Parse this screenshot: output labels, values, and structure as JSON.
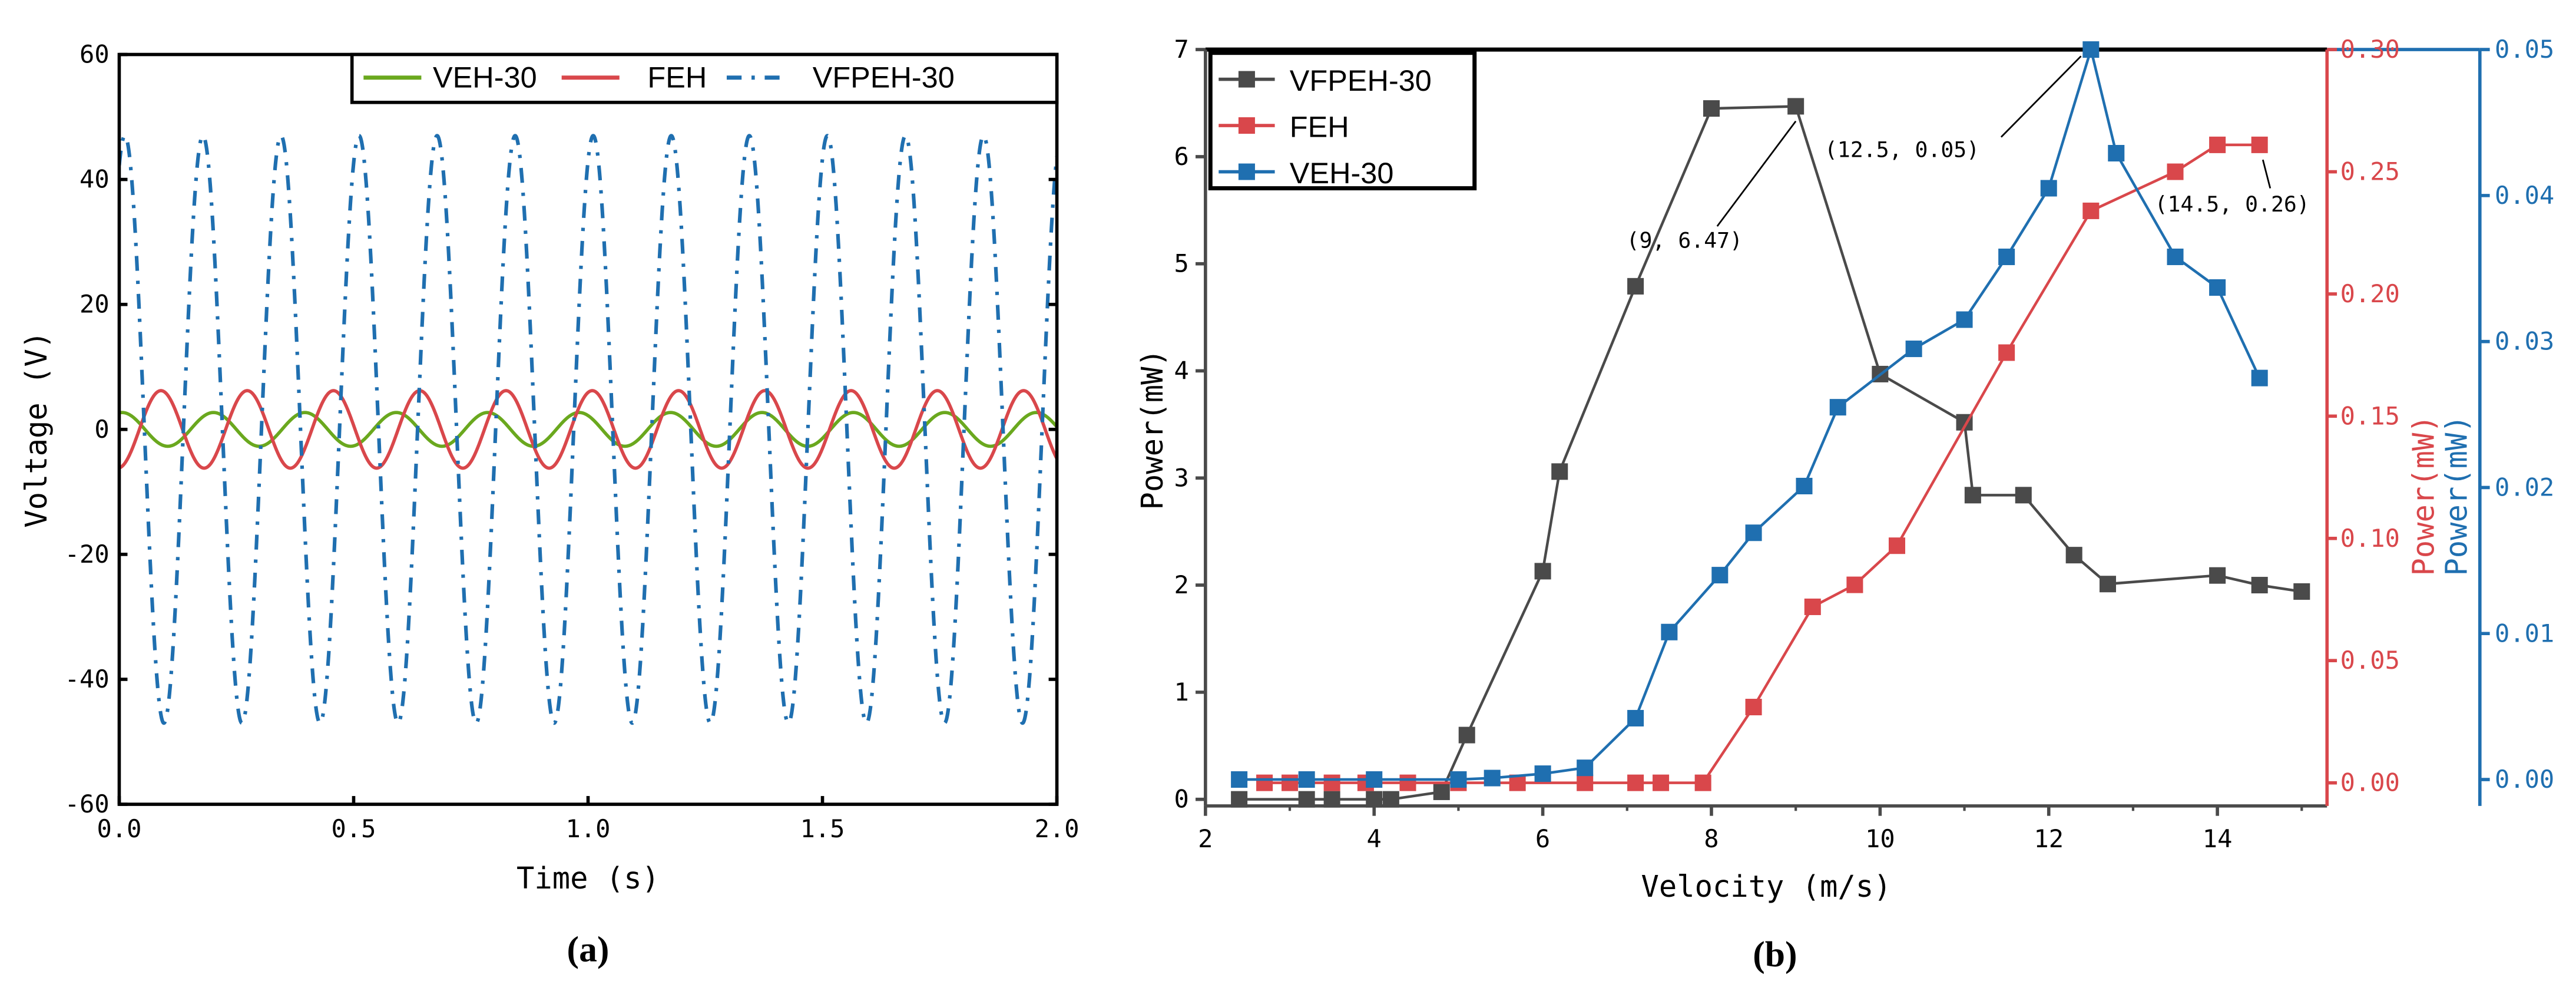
{
  "chart_data": [
    {
      "type": "line",
      "panel_label": "(a)",
      "xlabel": "Time (s)",
      "ylabel": "Voltage (V)",
      "xlim": [
        0,
        2
      ],
      "ylim": [
        -60,
        60
      ],
      "xticks": [
        "0.0",
        "0.5",
        "1.0",
        "1.5",
        "2.0"
      ],
      "yticks": [
        "-60",
        "-40",
        "-20",
        "0",
        "20",
        "40",
        "60"
      ],
      "legend_position": "top-right",
      "series": [
        {
          "name": "VEH-30",
          "color": "#6aa81e",
          "style": "solid",
          "amplitude": 2.7,
          "period": 0.195,
          "first_peak": 0.006
        },
        {
          "name": "FEH",
          "color": "#d9474b",
          "style": "solid",
          "amplitude": 6.2,
          "period": 0.184,
          "first_peak": 0.089
        },
        {
          "name": "VFPEH-30",
          "color": "#1f6fb0",
          "style": "dash-dot",
          "amplitude": 47,
          "period": 0.1665,
          "first_peak": 0.012
        }
      ]
    },
    {
      "type": "line",
      "panel_label": "(b)",
      "xlabel": "Velocity (m/s)",
      "ylabel": "Power(mW)",
      "ylabel_right_1": "Power(mW)",
      "ylabel_right_2": "Power(mW)",
      "xlim": [
        2,
        15.3
      ],
      "xticks": [
        "2",
        "4",
        "6",
        "8",
        "10",
        "12",
        "14"
      ],
      "ylim_left": [
        0,
        7
      ],
      "yticks_left": [
        "0",
        "1",
        "2",
        "3",
        "4",
        "5",
        "6",
        "7"
      ],
      "ylim_right_1": [
        0,
        0.3
      ],
      "yticks_right_1": [
        "0.00",
        "0.05",
        "0.10",
        "0.15",
        "0.20",
        "0.25",
        "0.30"
      ],
      "ylim_right_2": [
        0,
        0.05
      ],
      "yticks_right_2": [
        "0.00",
        "0.01",
        "0.02",
        "0.03",
        "0.04",
        "0.05"
      ],
      "legend_position": "top-left",
      "series": [
        {
          "name": "VFPEH-30",
          "color": "#4a4a4a",
          "axis": "left",
          "x": [
            2.4,
            3.2,
            3.5,
            4.0,
            4.2,
            4.8,
            5.1,
            6.0,
            6.2,
            7.1,
            8.0,
            9.0,
            10.0,
            11.0,
            11.1,
            11.7,
            12.3,
            12.7,
            14.0,
            14.5,
            15.0
          ],
          "y": [
            0.0,
            0.0,
            0.0,
            0.0,
            0.0,
            0.07,
            0.6,
            2.13,
            3.06,
            4.79,
            6.45,
            6.47,
            3.97,
            3.52,
            2.84,
            2.84,
            2.28,
            2.01,
            2.09,
            2.0,
            1.94
          ]
        },
        {
          "name": "FEH",
          "color": "#d9474b",
          "axis": "right_1",
          "x": [
            2.7,
            3.0,
            3.5,
            3.9,
            4.4,
            5.0,
            5.7,
            6.5,
            7.1,
            7.4,
            7.9,
            8.5,
            9.2,
            9.7,
            10.2,
            11.5,
            12.5,
            13.5,
            14.0,
            14.5
          ],
          "y": [
            0.0,
            0.0,
            0.0,
            0.0,
            0.0,
            0.0,
            0.0,
            0.0,
            0.0,
            0.0,
            0.0,
            0.031,
            0.072,
            0.081,
            0.097,
            0.176,
            0.234,
            0.25,
            0.261,
            0.261
          ]
        },
        {
          "name": "VEH-30",
          "color": "#1f6fb0",
          "axis": "right_2",
          "x": [
            2.4,
            3.2,
            4.0,
            5.0,
            5.4,
            6.0,
            6.5,
            7.1,
            7.5,
            8.1,
            8.5,
            9.1,
            9.5,
            10.4,
            11.0,
            11.5,
            12.0,
            12.5,
            12.8,
            13.5,
            14.0,
            14.5
          ],
          "y": [
            0.0,
            0.0,
            0.0,
            0.0,
            0.0001,
            0.0004,
            0.0008,
            0.0042,
            0.0101,
            0.014,
            0.0169,
            0.0201,
            0.0255,
            0.0295,
            0.0315,
            0.0358,
            0.0405,
            0.05,
            0.0429,
            0.0358,
            0.0337,
            0.0275
          ]
        }
      ],
      "annotations": [
        {
          "text": "(9, 6.47)",
          "x": 9,
          "y": 6.47,
          "axis": "left"
        },
        {
          "text": "(12.5, 0.05)",
          "x": 12.5,
          "y": 0.05,
          "axis": "right_2"
        },
        {
          "text": "(14.5, 0.26)",
          "x": 14.5,
          "y": 0.261,
          "axis": "right_1"
        }
      ]
    }
  ]
}
